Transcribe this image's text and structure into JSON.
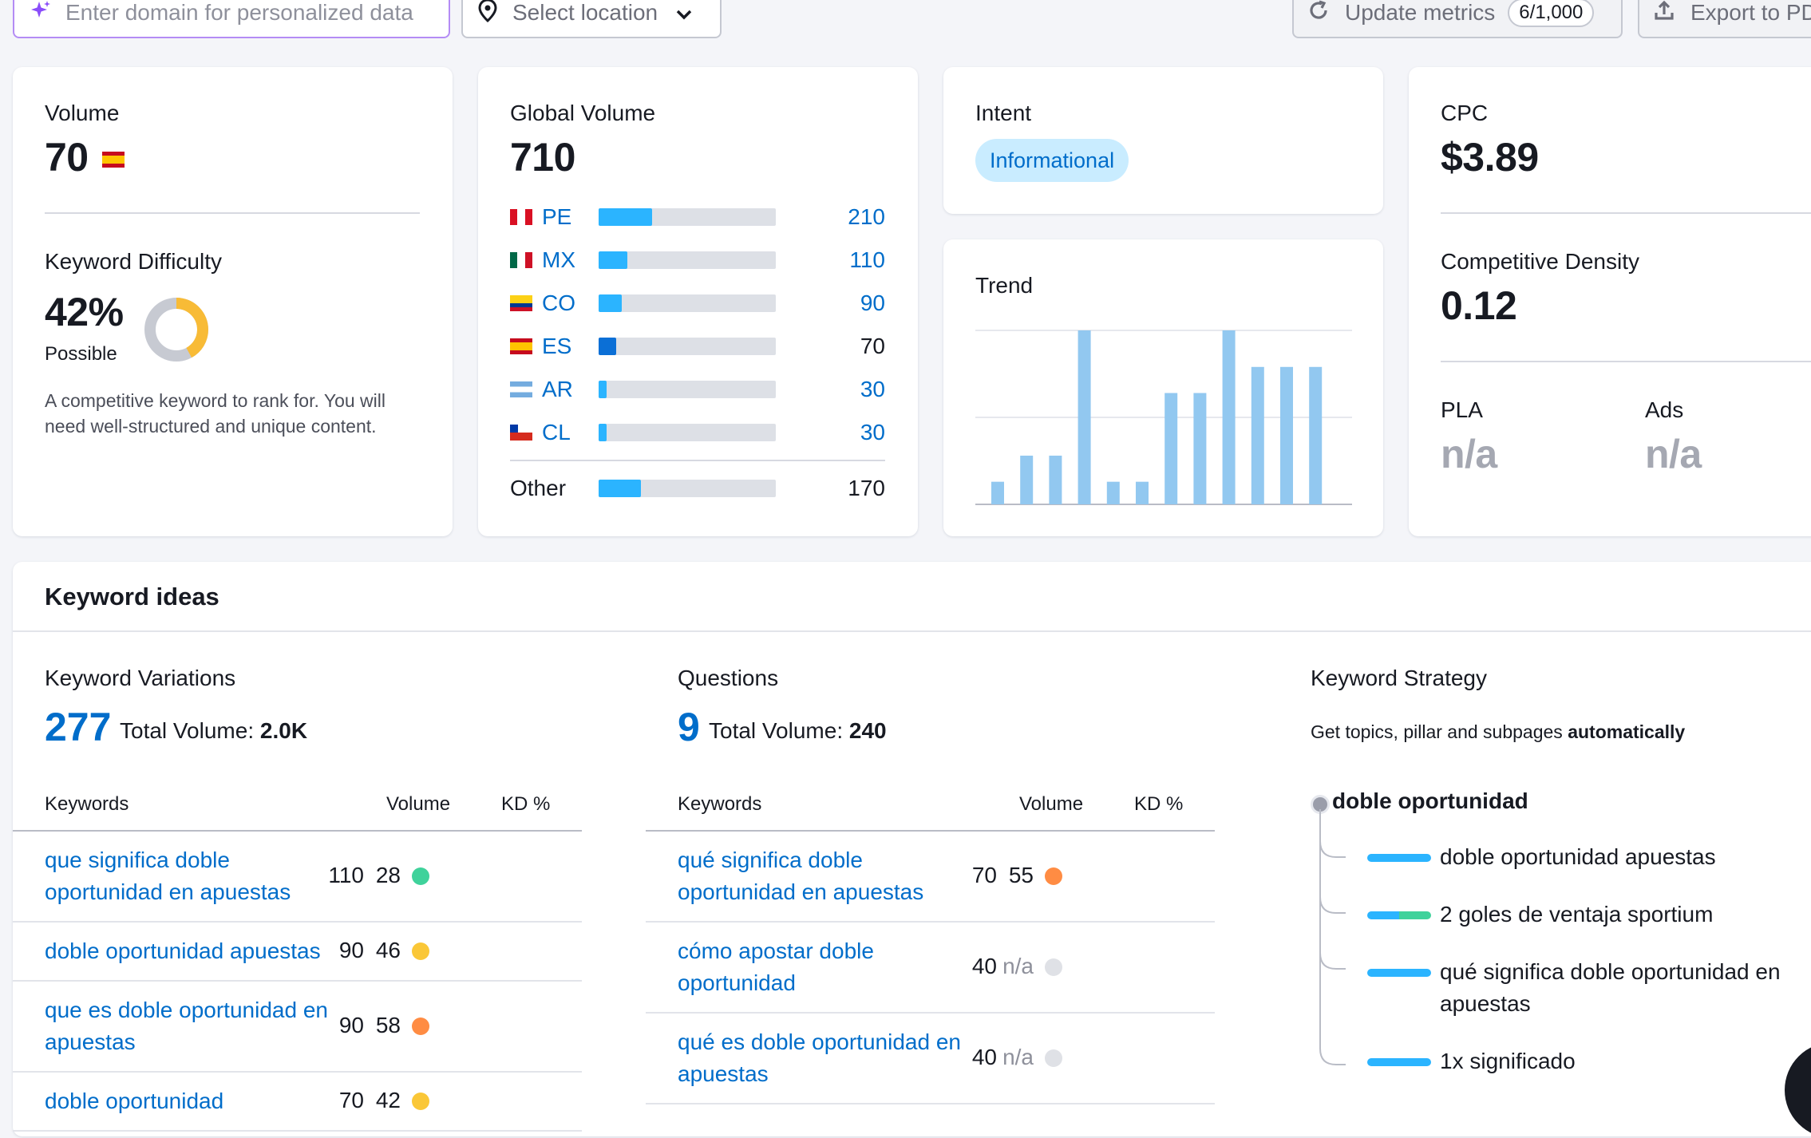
{
  "toolbar": {
    "domain_placeholder": "Enter domain for personalized data",
    "location_label": "Select location",
    "update_label": "Update metrics",
    "update_count": "6/1,000",
    "export_label": "Export to PD"
  },
  "volume": {
    "label": "Volume",
    "value": "70",
    "flag": "ES"
  },
  "keyword_difficulty": {
    "label": "Keyword Difficulty",
    "value": "42%",
    "level": "Possible",
    "percent": 42,
    "color": "#f8bb36",
    "description": "A competitive keyword to rank for. You will need well-structured and unique content."
  },
  "global_volume": {
    "label": "Global Volume",
    "value": "710",
    "rows": [
      {
        "code": "PE",
        "value": "210",
        "fraction": 0.3,
        "linked": true
      },
      {
        "code": "MX",
        "value": "110",
        "fraction": 0.16,
        "linked": true
      },
      {
        "code": "CO",
        "value": "90",
        "fraction": 0.13,
        "linked": true
      },
      {
        "code": "ES",
        "value": "70",
        "fraction": 0.1,
        "linked": false
      },
      {
        "code": "AR",
        "value": "30",
        "fraction": 0.045,
        "linked": true
      },
      {
        "code": "CL",
        "value": "30",
        "fraction": 0.045,
        "linked": true
      }
    ],
    "other": {
      "label": "Other",
      "value": "170",
      "fraction": 0.24
    }
  },
  "intent": {
    "label": "Intent",
    "badge": "Informational"
  },
  "trend": {
    "label": "Trend",
    "values": [
      0.13,
      0.28,
      0.28,
      1.0,
      0.13,
      0.13,
      0.64,
      0.64,
      1.0,
      0.79,
      0.79,
      0.79
    ]
  },
  "cpc": {
    "label": "CPC",
    "value": "$3.89"
  },
  "competitive_density": {
    "label": "Competitive Density",
    "value": "0.12"
  },
  "pla": {
    "label": "PLA",
    "value": "n/a"
  },
  "ads": {
    "label": "Ads",
    "value": "n/a"
  },
  "keyword_ideas": {
    "title": "Keyword ideas",
    "variations": {
      "label": "Keyword Variations",
      "count": "277",
      "total_label": "Total Volume:",
      "total_value": "2.0K",
      "headers": {
        "keywords": "Keywords",
        "volume": "Volume",
        "kd": "KD %"
      },
      "rows": [
        {
          "line1": "que significa doble",
          "line2": "oportunidad en apuestas",
          "volume": "110",
          "kd": "28",
          "kd_color": "#3fd29b"
        },
        {
          "line1": "doble oportunidad apuestas",
          "line2": "",
          "volume": "90",
          "kd": "46",
          "kd_color": "#fac737"
        },
        {
          "line1": "que es doble oportunidad en",
          "line2": "apuestas",
          "volume": "90",
          "kd": "58",
          "kd_color": "#ff8c43"
        },
        {
          "line1": "doble oportunidad",
          "line2": "",
          "volume": "70",
          "kd": "42",
          "kd_color": "#fac737"
        }
      ]
    },
    "questions": {
      "label": "Questions",
      "count": "9",
      "total_label": "Total Volume:",
      "total_value": "240",
      "headers": {
        "keywords": "Keywords",
        "volume": "Volume",
        "kd": "KD %"
      },
      "rows": [
        {
          "line1": "qué significa doble",
          "line2": "oportunidad en apuestas",
          "volume": "70",
          "kd": "55",
          "kd_color": "#ff8c43"
        },
        {
          "line1": "cómo apostar doble",
          "line2": "oportunidad",
          "volume": "40",
          "kd": "n/a",
          "kd_color": "#dfe1e6"
        },
        {
          "line1": "qué es doble oportunidad en",
          "line2": "apuestas",
          "volume": "40",
          "kd": "n/a",
          "kd_color": "#dfe1e6"
        }
      ]
    },
    "strategy": {
      "label": "Keyword Strategy",
      "subtitle_prefix": "Get topics, pillar and subpages ",
      "subtitle_bold": "automatically",
      "root": "doble oportunidad",
      "items": [
        {
          "line1": "doble oportunidad apuestas",
          "line2": ""
        },
        {
          "line1": "2 goles de ventaja sportium",
          "line2": ""
        },
        {
          "line1": "qué significa doble oportunidad en",
          "line2": "apuestas"
        },
        {
          "line1": "1x significado",
          "line2": ""
        }
      ]
    }
  }
}
